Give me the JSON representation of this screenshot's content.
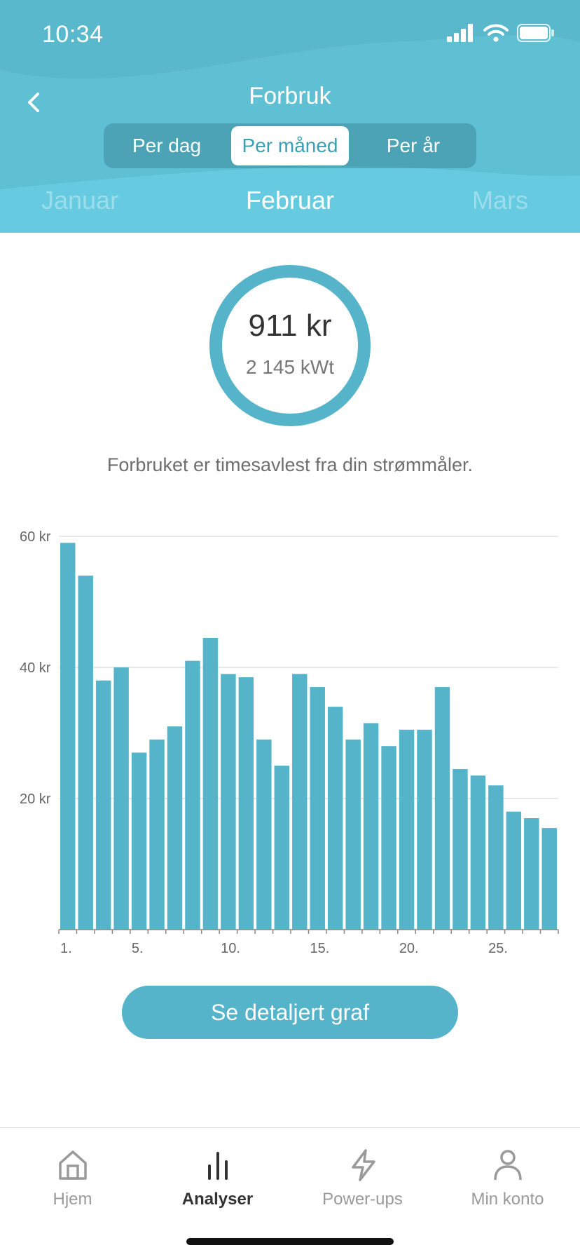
{
  "status_bar": {
    "time": "10:34"
  },
  "header": {
    "title": "Forbruk",
    "segments": [
      "Per dag",
      "Per måned",
      "Per år"
    ],
    "active_segment": "Per måned",
    "months": {
      "prev": "Januar",
      "current": "Februar",
      "next": "Mars"
    }
  },
  "summary": {
    "amount": "911 kr",
    "energy": "2 145 kWt"
  },
  "info_text": "Forbruket er timesavlest fra din strømmåler.",
  "chart_data": {
    "type": "bar",
    "categories": [
      "1.",
      "2.",
      "3.",
      "4.",
      "5.",
      "6.",
      "7.",
      "8.",
      "9.",
      "10.",
      "11.",
      "12.",
      "13.",
      "14.",
      "15.",
      "16.",
      "17.",
      "18.",
      "19.",
      "20.",
      "21.",
      "22.",
      "23.",
      "24.",
      "25.",
      "26.",
      "27.",
      "28."
    ],
    "x_tick_labels": [
      "1.",
      "5.",
      "10.",
      "15.",
      "20.",
      "25."
    ],
    "values": [
      59,
      54,
      38,
      40,
      27,
      29,
      31,
      41,
      44.5,
      39,
      38.5,
      29,
      25,
      39,
      37,
      34,
      29,
      31.5,
      28,
      30.5,
      30.5,
      37,
      24.5,
      23.5,
      22,
      18,
      17,
      15.5
    ],
    "y_ticks": [
      "20 kr",
      "40 kr",
      "60 kr"
    ],
    "ylim": [
      0,
      60
    ],
    "grid": true,
    "bar_color": "#55b4c9"
  },
  "button": {
    "label": "Se detaljert graf"
  },
  "tabs": [
    {
      "label": "Hjem",
      "icon": "home-icon",
      "active": false
    },
    {
      "label": "Analyser",
      "icon": "bar-chart-icon",
      "active": true
    },
    {
      "label": "Power-ups",
      "icon": "lightning-icon",
      "active": false
    },
    {
      "label": "Min konto",
      "icon": "person-icon",
      "active": false
    }
  ],
  "colors": {
    "header_bg": "#5ab8cc",
    "accent": "#55b4c9",
    "active_segment_text": "#3a9fb3"
  }
}
